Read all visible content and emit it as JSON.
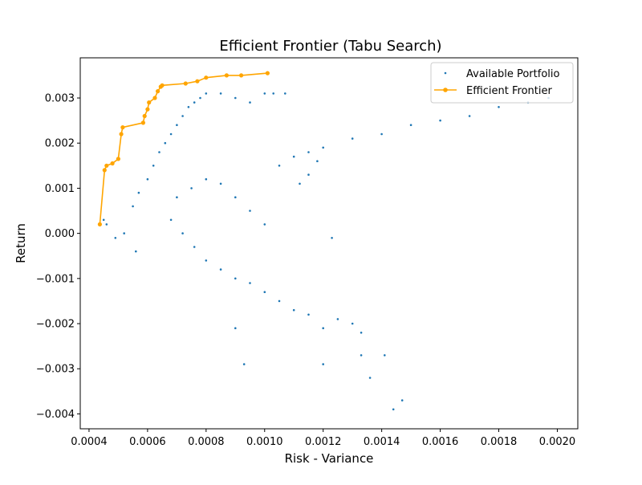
{
  "chart_data": {
    "type": "scatter",
    "title": "Efficient Frontier (Tabu Search)",
    "xlabel": "Risk - Variance",
    "ylabel": "Return",
    "xlim": [
      0.00037,
      0.00207
    ],
    "ylim": [
      -0.00433,
      0.00389
    ],
    "x_ticks": [
      0.0004,
      0.0006,
      0.0008,
      0.001,
      0.0012,
      0.0014,
      0.0016,
      0.0018,
      0.002
    ],
    "x_tick_labels": [
      "0.0004",
      "0.0006",
      "0.0008",
      "0.0010",
      "0.0012",
      "0.0014",
      "0.0016",
      "0.0018",
      "0.0020"
    ],
    "y_ticks": [
      -0.004,
      -0.003,
      -0.002,
      -0.001,
      0.0,
      0.001,
      0.002,
      0.003
    ],
    "y_tick_labels": [
      "−0.004",
      "−0.003",
      "−0.002",
      "−0.001",
      "0.000",
      "0.001",
      "0.002",
      "0.003"
    ],
    "grid": false,
    "legend_position": "top-right",
    "series": [
      {
        "name": "Available Portfolio",
        "kind": "scatter",
        "color": "#1f77b4",
        "points": [
          [
            0.00056,
            -0.0004
          ],
          [
            0.00049,
            -0.0001
          ],
          [
            0.00052,
            0.0
          ],
          [
            0.00046,
            0.0002
          ],
          [
            0.00045,
            0.0003
          ],
          [
            0.00055,
            0.0006
          ],
          [
            0.00057,
            0.0009
          ],
          [
            0.0006,
            0.0012
          ],
          [
            0.00062,
            0.0015
          ],
          [
            0.00064,
            0.0018
          ],
          [
            0.00066,
            0.002
          ],
          [
            0.00068,
            0.0022
          ],
          [
            0.0007,
            0.0024
          ],
          [
            0.00072,
            0.0026
          ],
          [
            0.00074,
            0.0028
          ],
          [
            0.00076,
            0.0029
          ],
          [
            0.00078,
            0.003
          ],
          [
            0.0008,
            0.0031
          ],
          [
            0.00085,
            0.0031
          ],
          [
            0.0009,
            0.003
          ],
          [
            0.00095,
            0.0029
          ],
          [
            0.001,
            0.0031
          ],
          [
            0.00103,
            0.0031
          ],
          [
            0.00107,
            0.0031
          ],
          [
            0.0007,
            0.0008
          ],
          [
            0.00075,
            0.001
          ],
          [
            0.0008,
            0.0012
          ],
          [
            0.00085,
            0.0011
          ],
          [
            0.0009,
            0.0008
          ],
          [
            0.00095,
            0.0005
          ],
          [
            0.001,
            0.0002
          ],
          [
            0.00068,
            0.0003
          ],
          [
            0.00072,
            0.0
          ],
          [
            0.00076,
            -0.0003
          ],
          [
            0.0008,
            -0.0006
          ],
          [
            0.00085,
            -0.0008
          ],
          [
            0.0009,
            -0.001
          ],
          [
            0.00095,
            -0.0011
          ],
          [
            0.001,
            -0.0013
          ],
          [
            0.00105,
            -0.0015
          ],
          [
            0.0011,
            -0.0017
          ],
          [
            0.00115,
            -0.0018
          ],
          [
            0.0012,
            -0.0021
          ],
          [
            0.00125,
            -0.0019
          ],
          [
            0.0013,
            -0.002
          ],
          [
            0.00133,
            -0.0022
          ],
          [
            0.00133,
            -0.0027
          ],
          [
            0.00141,
            -0.0027
          ],
          [
            0.00136,
            -0.0032
          ],
          [
            0.00147,
            -0.0037
          ],
          [
            0.00144,
            -0.0039
          ],
          [
            0.00093,
            -0.0029
          ],
          [
            0.0009,
            -0.0021
          ],
          [
            0.0012,
            -0.0029
          ],
          [
            0.00123,
            -0.0001
          ],
          [
            0.00105,
            0.0015
          ],
          [
            0.0011,
            0.0017
          ],
          [
            0.00115,
            0.0018
          ],
          [
            0.0012,
            0.0019
          ],
          [
            0.0013,
            0.0021
          ],
          [
            0.0014,
            0.0022
          ],
          [
            0.0015,
            0.0024
          ],
          [
            0.0016,
            0.0025
          ],
          [
            0.0017,
            0.0026
          ],
          [
            0.0018,
            0.0028
          ],
          [
            0.0019,
            0.0029
          ],
          [
            0.00197,
            0.003
          ],
          [
            0.00115,
            0.0013
          ],
          [
            0.00112,
            0.0011
          ],
          [
            0.00118,
            0.0016
          ]
        ]
      },
      {
        "name": "Efficient Frontier",
        "kind": "line-marker",
        "color": "#ffa500",
        "points": [
          [
            0.000437,
            0.0002
          ],
          [
            0.000453,
            0.0014
          ],
          [
            0.00046,
            0.0015
          ],
          [
            0.00048,
            0.00155
          ],
          [
            0.0005,
            0.00165
          ],
          [
            0.00051,
            0.0022
          ],
          [
            0.000515,
            0.00235
          ],
          [
            0.000585,
            0.00245
          ],
          [
            0.00059,
            0.0026
          ],
          [
            0.0006,
            0.00275
          ],
          [
            0.000605,
            0.0029
          ],
          [
            0.000625,
            0.003
          ],
          [
            0.000635,
            0.00315
          ],
          [
            0.000645,
            0.00325
          ],
          [
            0.00065,
            0.00328
          ],
          [
            0.00073,
            0.00332
          ],
          [
            0.00077,
            0.00337
          ],
          [
            0.0008,
            0.00345
          ],
          [
            0.00087,
            0.0035
          ],
          [
            0.00092,
            0.0035
          ],
          [
            0.00101,
            0.00355
          ]
        ]
      }
    ]
  },
  "legend": {
    "items": [
      {
        "label": "Available Portfolio",
        "color": "#1f77b4"
      },
      {
        "label": "Efficient Frontier",
        "color": "#ffa500"
      }
    ]
  }
}
